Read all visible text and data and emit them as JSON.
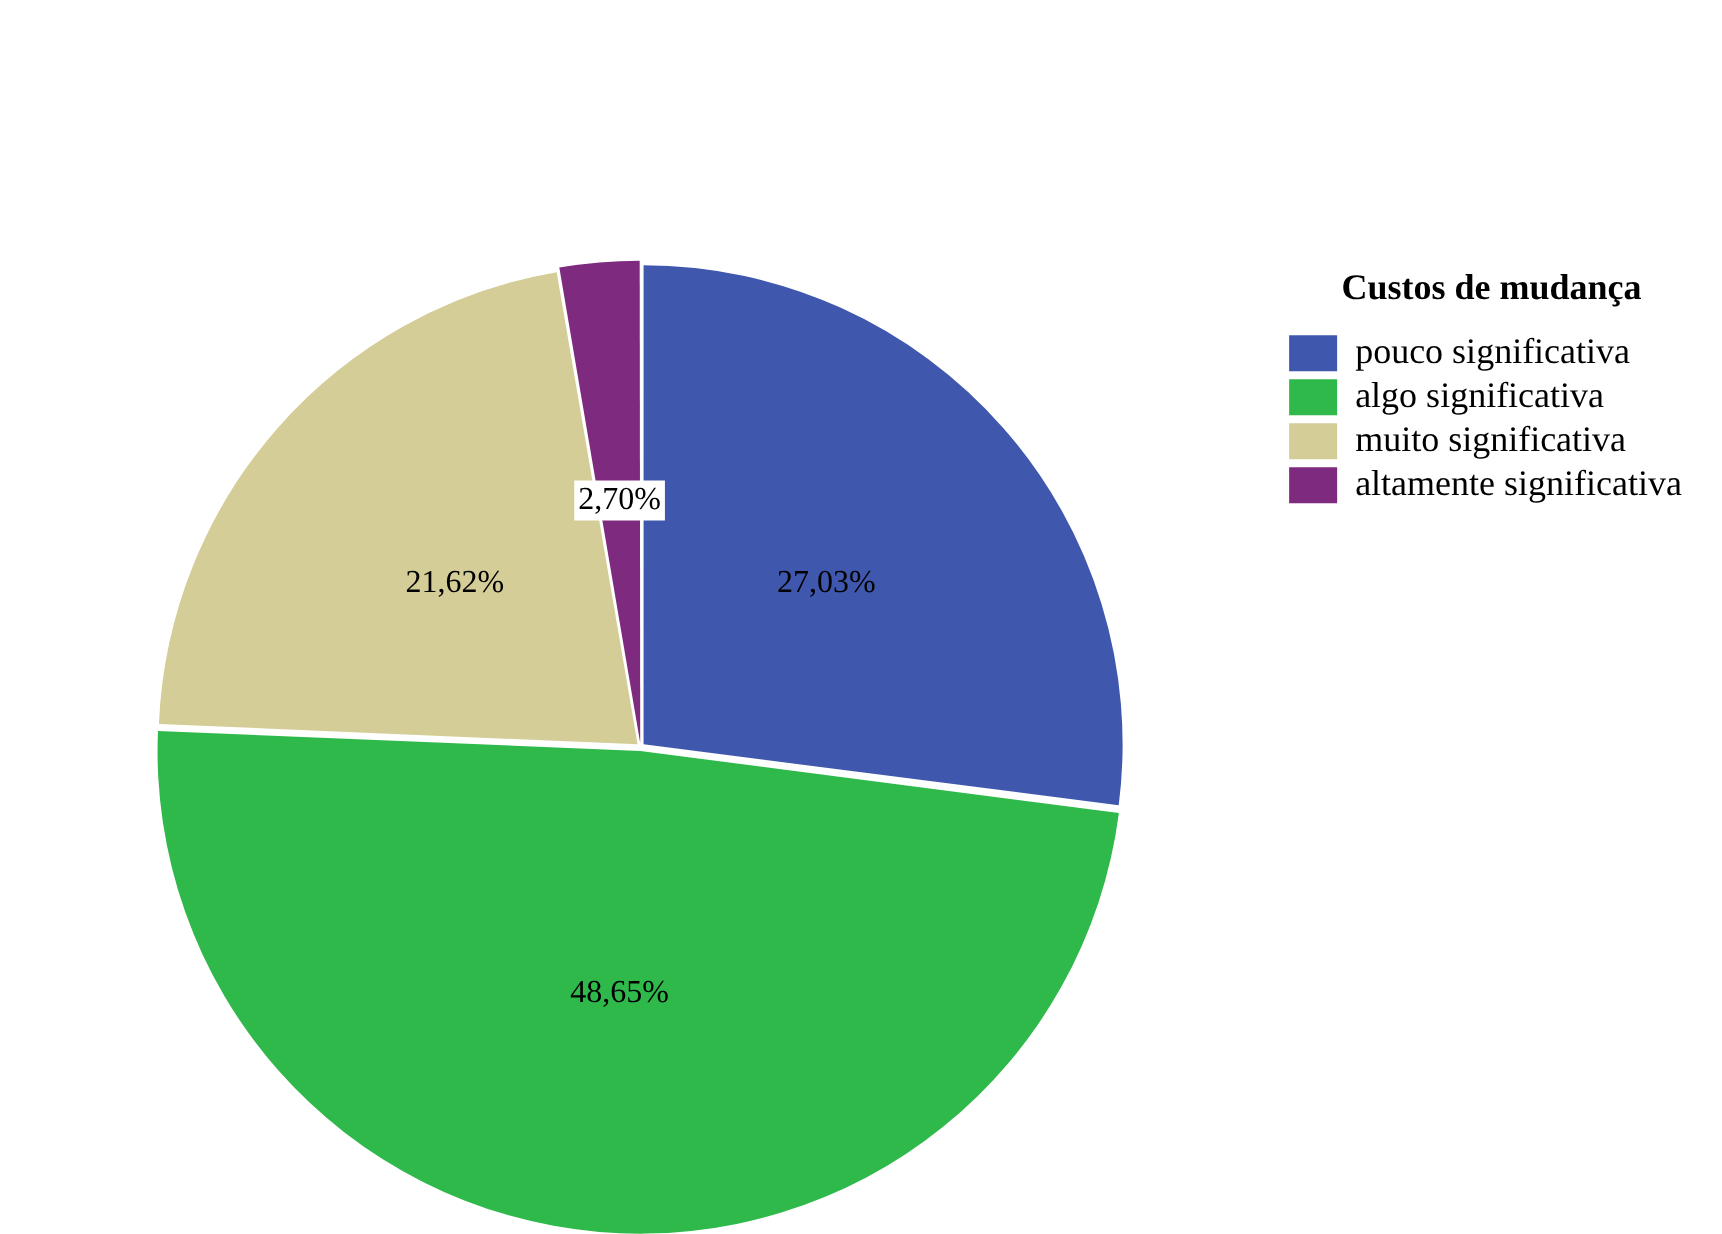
{
  "chart_data": {
    "type": "pie",
    "legend_title": "Custos de mudança",
    "categories": [
      "pouco significativa",
      "algo significativa",
      "muito significativa",
      "altamente significativa"
    ],
    "values": [
      27.03,
      48.65,
      21.62,
      2.7
    ],
    "value_labels": [
      "27,03%",
      "48,65%",
      "21,62%",
      "2,70%"
    ],
    "colors": [
      "#3f58ad",
      "#2eb94a",
      "#d4cd98",
      "#7e2a7e"
    ],
    "legend": "top right"
  }
}
